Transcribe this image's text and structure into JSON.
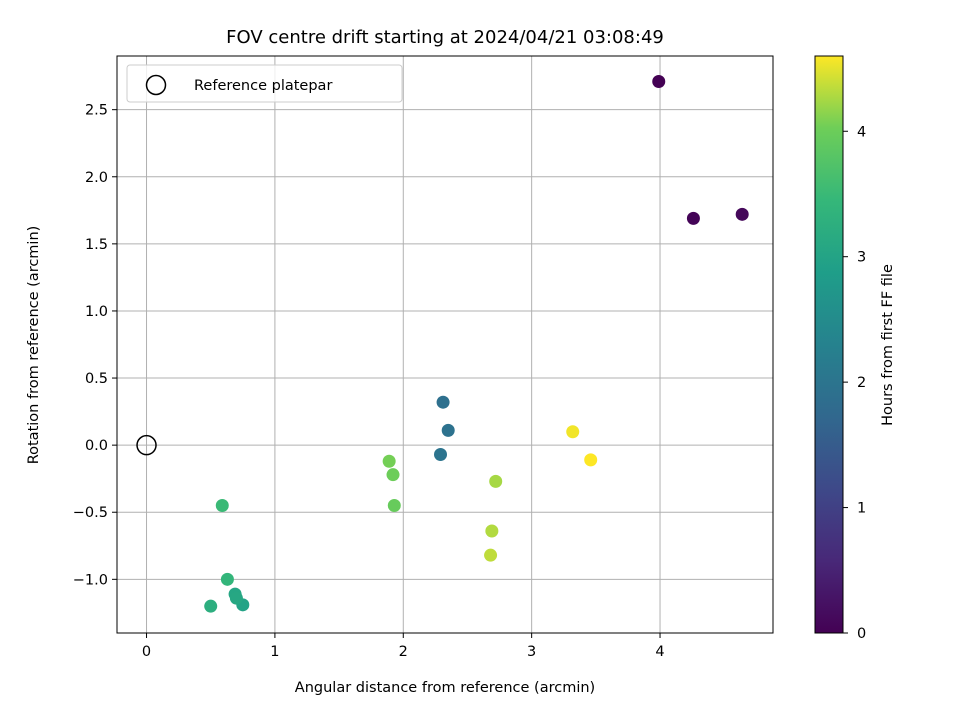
{
  "chart_data": {
    "type": "scatter",
    "title": "FOV centre drift starting at 2024/04/21 03:08:49",
    "xlabel": "Angular distance from reference (arcmin)",
    "ylabel": "Rotation from reference (arcmin)",
    "xlim": [
      -0.23,
      4.88
    ],
    "ylim": [
      -1.4,
      2.9
    ],
    "x_ticks": [
      0,
      1,
      2,
      3,
      4
    ],
    "y_ticks": [
      -1.0,
      -0.5,
      0.0,
      0.5,
      1.0,
      1.5,
      2.0,
      2.5
    ],
    "x_tick_labels": [
      "0",
      "1",
      "2",
      "3",
      "4"
    ],
    "y_tick_labels": [
      "−1.0",
      "−0.5",
      "0.0",
      "0.5",
      "1.0",
      "1.5",
      "2.0",
      "2.5"
    ],
    "grid": true,
    "legend": {
      "placement": "top-left",
      "entries": [
        "Reference platepar"
      ]
    },
    "reference_point": {
      "x": 0,
      "y": 0,
      "label": "Reference platepar"
    },
    "colorbar": {
      "label": "Hours from first FF file",
      "colormap": "viridis",
      "range": [
        0,
        4.6
      ],
      "ticks": [
        0,
        1,
        2,
        3,
        4
      ],
      "tick_labels": [
        "0",
        "1",
        "2",
        "3",
        "4"
      ]
    },
    "points": [
      {
        "x": 3.99,
        "y": 2.71,
        "hours": 0.0
      },
      {
        "x": 4.26,
        "y": 1.69,
        "hours": 0.05
      },
      {
        "x": 4.64,
        "y": 1.72,
        "hours": 0.1
      },
      {
        "x": 2.31,
        "y": 0.32,
        "hours": 1.9
      },
      {
        "x": 2.35,
        "y": 0.11,
        "hours": 1.95
      },
      {
        "x": 2.29,
        "y": -0.07,
        "hours": 1.98
      },
      {
        "x": 0.75,
        "y": -1.19,
        "hours": 3.0
      },
      {
        "x": 0.69,
        "y": -1.11,
        "hours": 3.05
      },
      {
        "x": 0.7,
        "y": -1.14,
        "hours": 3.08
      },
      {
        "x": 0.5,
        "y": -1.2,
        "hours": 3.25
      },
      {
        "x": 0.63,
        "y": -1.0,
        "hours": 3.4
      },
      {
        "x": 0.59,
        "y": -0.45,
        "hours": 3.5
      },
      {
        "x": 1.93,
        "y": -0.45,
        "hours": 3.95
      },
      {
        "x": 1.92,
        "y": -0.22,
        "hours": 4.0
      },
      {
        "x": 1.89,
        "y": -0.12,
        "hours": 4.05
      },
      {
        "x": 2.72,
        "y": -0.27,
        "hours": 4.25
      },
      {
        "x": 2.69,
        "y": -0.64,
        "hours": 4.3
      },
      {
        "x": 2.68,
        "y": -0.82,
        "hours": 4.35
      },
      {
        "x": 3.32,
        "y": 0.1,
        "hours": 4.55
      },
      {
        "x": 3.46,
        "y": -0.11,
        "hours": 4.6
      }
    ]
  }
}
